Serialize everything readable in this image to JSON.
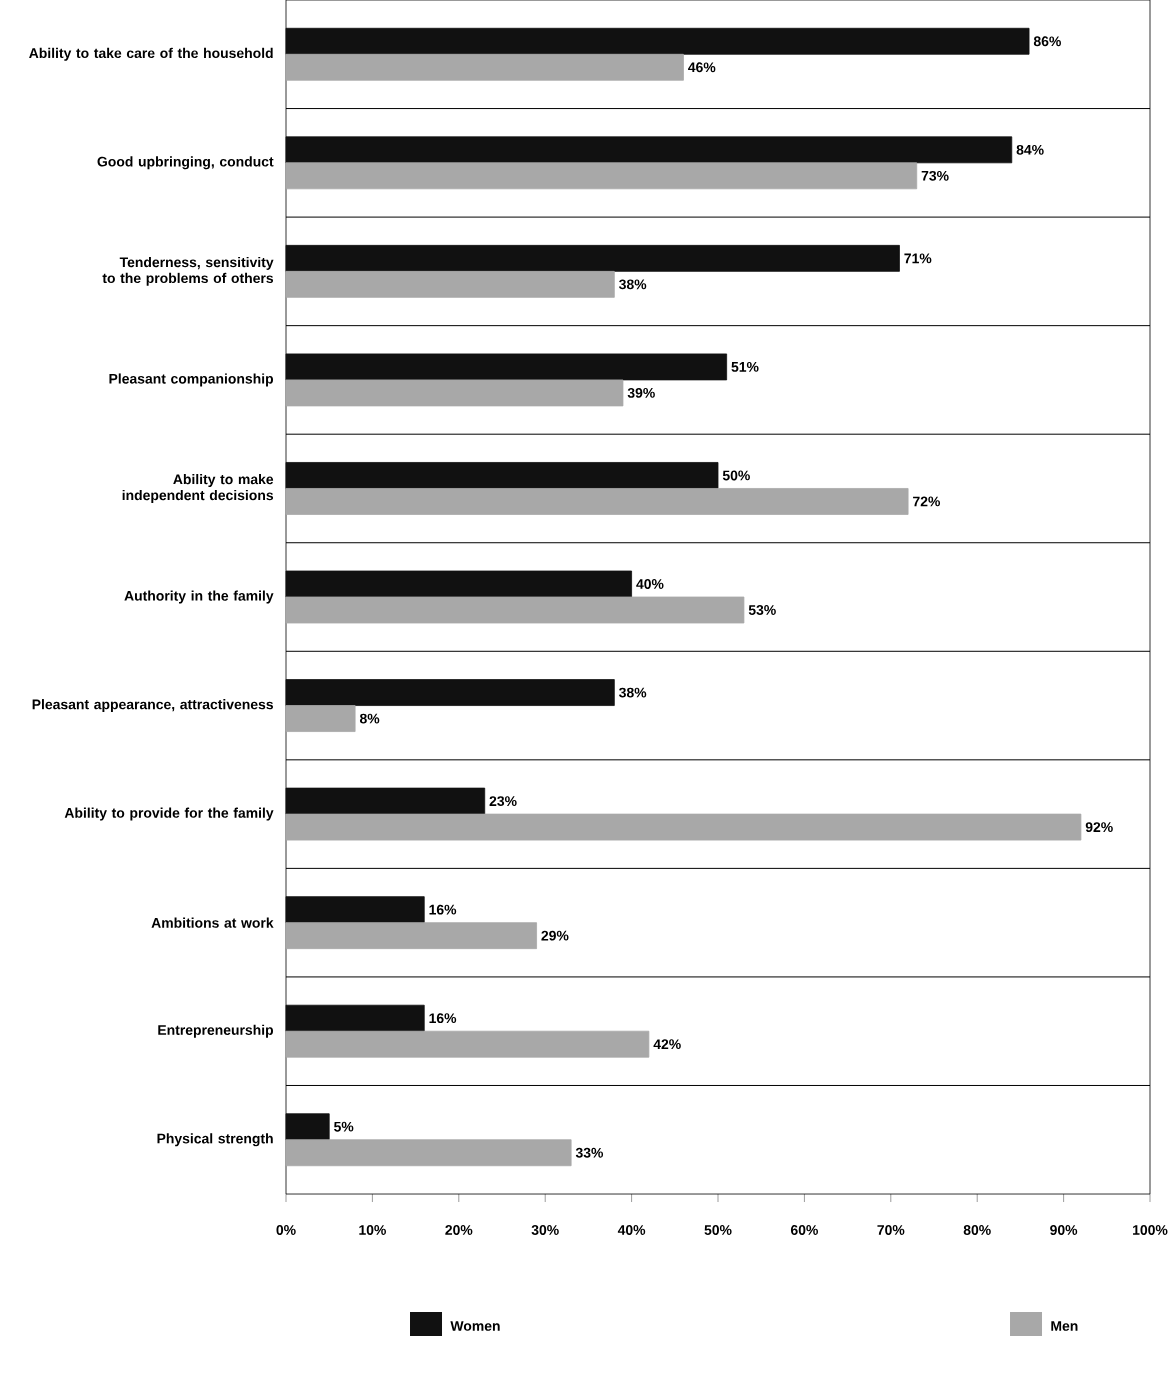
{
  "chart_data": {
    "type": "bar",
    "orientation": "horizontal",
    "categories": [
      "Ability to take care of the household",
      "Good upbringing, conduct",
      "Tenderness, sensitivity to the problems of others",
      "Pleasant companionship",
      "Ability to make independent decisions",
      "Authority in the family",
      "Pleasant appearance, attractiveness",
      "Ability to provide for the family",
      "Ambitions at work",
      "Entrepreneurship",
      "Physical strength"
    ],
    "series": [
      {
        "name": "Women",
        "color": "#111111",
        "values": [
          86,
          84,
          71,
          51,
          50,
          40,
          38,
          23,
          16,
          16,
          5
        ],
        "value_labels": [
          "86%",
          "84%",
          "71%",
          "51%",
          "50%",
          "40%",
          "38%",
          "23%",
          "16%",
          "16%",
          "5%"
        ]
      },
      {
        "name": "Men",
        "color": "#a8a8a8",
        "values": [
          46,
          73,
          38,
          39,
          72,
          53,
          8,
          92,
          29,
          42,
          33
        ],
        "value_labels": [
          "46%",
          "73%",
          "38%",
          "39%",
          "72%",
          "53%",
          "8%",
          "92%",
          "29%",
          "42%",
          "33%"
        ]
      }
    ],
    "xlim": [
      0,
      100
    ],
    "xticks": [
      {
        "value": 0,
        "label": "0%"
      },
      {
        "value": 10,
        "label": "10%"
      },
      {
        "value": 20,
        "label": "20%"
      },
      {
        "value": 30,
        "label": "30%"
      },
      {
        "value": 40,
        "label": "40%"
      },
      {
        "value": 50,
        "label": "50%"
      },
      {
        "value": 60,
        "label": "60%"
      },
      {
        "value": 70,
        "label": "70%"
      },
      {
        "value": 80,
        "label": "80%"
      },
      {
        "value": 90,
        "label": "90%"
      },
      {
        "value": 100,
        "label": "100%"
      }
    ],
    "grid": "y",
    "legend": "bottom"
  }
}
